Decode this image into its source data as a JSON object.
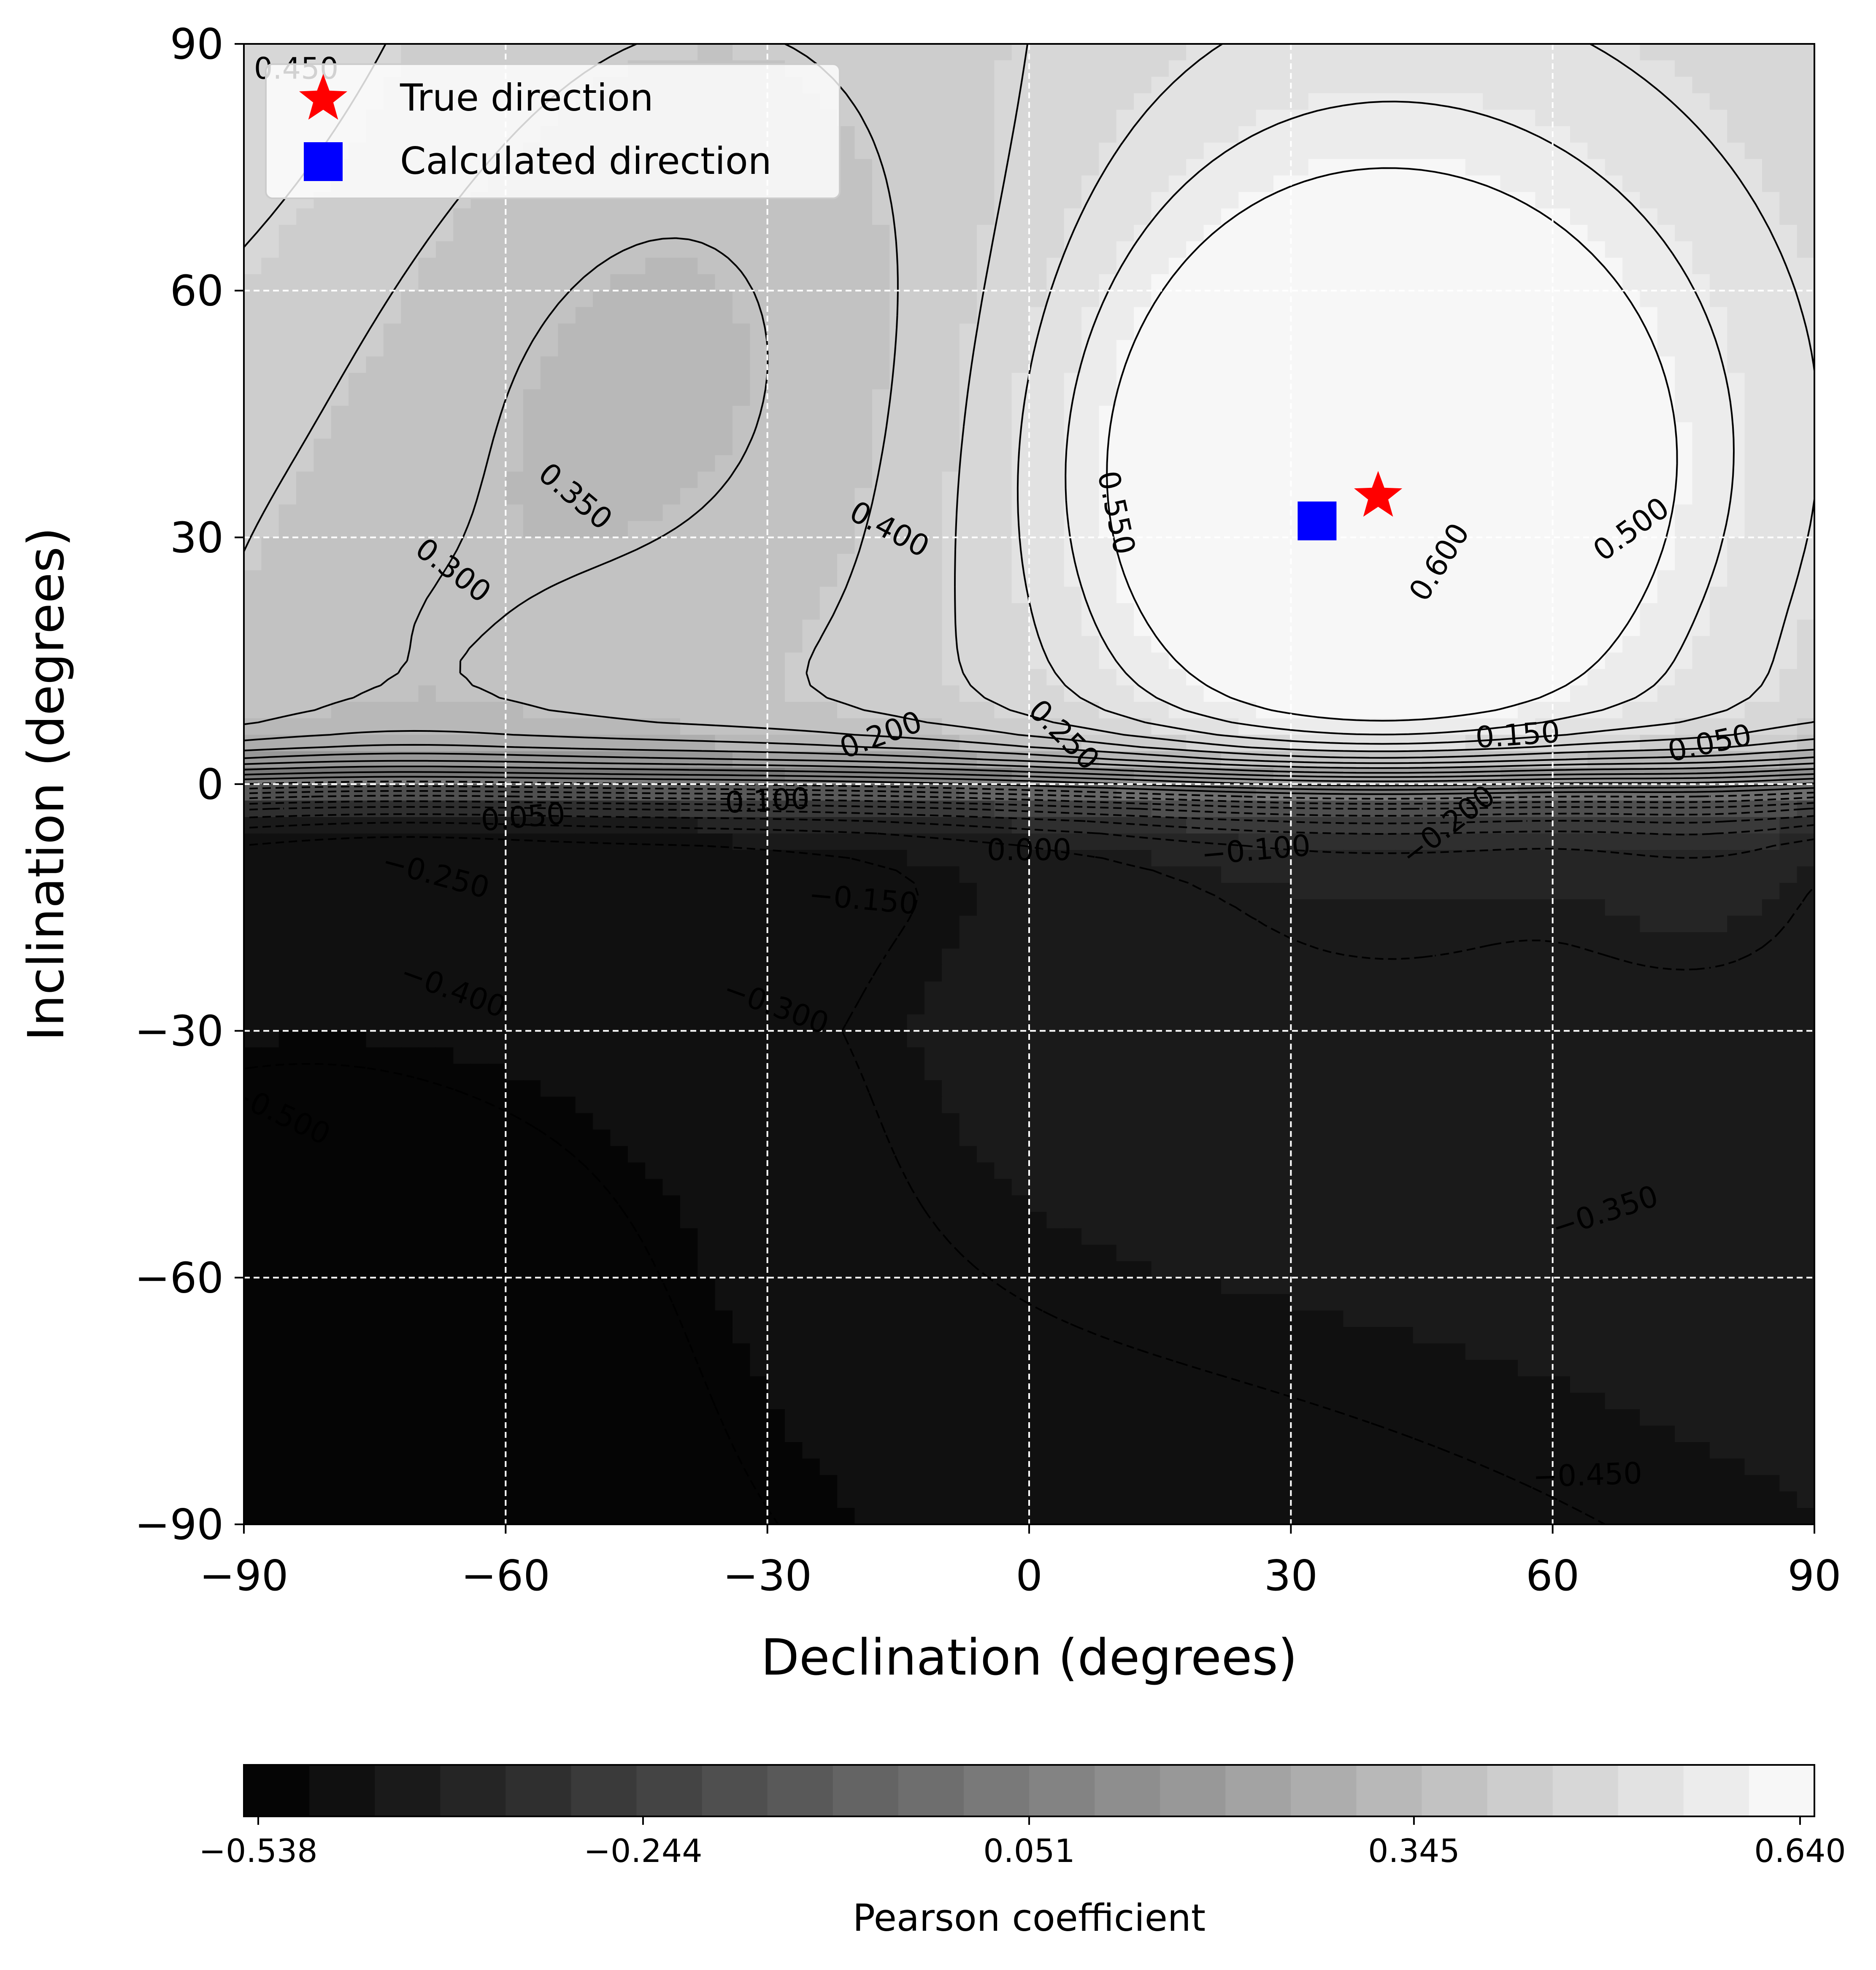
{
  "chart_data": {
    "type": "heatmap",
    "subtype": "filled-contour",
    "xlabel": "Declination (degrees)",
    "ylabel": "Inclination (degrees)",
    "xlim": [
      -90,
      90
    ],
    "ylim": [
      -90,
      90
    ],
    "xticks": [
      -90,
      -60,
      -30,
      0,
      30,
      60,
      90
    ],
    "yticks": [
      -90,
      -60,
      -30,
      0,
      30,
      60,
      90
    ],
    "xtick_labels": [
      "−90",
      "−60",
      "−30",
      "0",
      "30",
      "60",
      "90"
    ],
    "ytick_labels": [
      "−90",
      "−60",
      "−30",
      "0",
      "30",
      "60",
      "90"
    ],
    "grid": true,
    "grid_style": "white dashed",
    "colormap": "gray",
    "colorbar": {
      "label": "Pearson coefficient",
      "orientation": "horizontal",
      "range": [
        -0.538,
        0.64
      ],
      "levels": 24,
      "ticks": [
        -0.538,
        -0.244,
        0.051,
        0.345,
        0.64
      ],
      "tick_labels": [
        "−0.538",
        "−0.244",
        "0.051",
        "0.345",
        "0.640"
      ]
    },
    "contour_labels": [
      {
        "text": "0.450",
        "x": -84,
        "y": 87,
        "rot": 0
      },
      {
        "text": "0.350",
        "x": -52,
        "y": 35,
        "rot": 40
      },
      {
        "text": "0.300",
        "x": -66,
        "y": 26,
        "rot": 37
      },
      {
        "text": "0.400",
        "x": -16,
        "y": 31,
        "rot": 28
      },
      {
        "text": "0.550",
        "x": 10,
        "y": 33,
        "rot": 78
      },
      {
        "text": "0.600",
        "x": 47,
        "y": 27,
        "rot": -58
      },
      {
        "text": "0.500",
        "x": 69,
        "y": 31,
        "rot": -36
      },
      {
        "text": "0.250",
        "x": 4,
        "y": 6,
        "rot": 45
      },
      {
        "text": "0.200",
        "x": -17,
        "y": 6,
        "rot": -20
      },
      {
        "text": "0.150",
        "x": 56,
        "y": 6,
        "rot": -4
      },
      {
        "text": "0.050",
        "x": 78,
        "y": 5,
        "rot": -12
      },
      {
        "text": "0.050",
        "x": -58,
        "y": -4,
        "rot": -5
      },
      {
        "text": "0.100",
        "x": -30,
        "y": -2,
        "rot": -3
      },
      {
        "text": "0.000",
        "x": 0,
        "y": -8,
        "rot": 0
      },
      {
        "text": "−0.100",
        "x": 26,
        "y": -8,
        "rot": -5
      },
      {
        "text": "−0.200",
        "x": 48,
        "y": -5,
        "rot": -38
      },
      {
        "text": "−0.150",
        "x": -19,
        "y": -14,
        "rot": 5
      },
      {
        "text": "−0.250",
        "x": -68,
        "y": -11,
        "rot": 15
      },
      {
        "text": "−0.300",
        "x": -29,
        "y": -27,
        "rot": 20
      },
      {
        "text": "−0.400",
        "x": -66,
        "y": -25,
        "rot": 20
      },
      {
        "text": "−0.500",
        "x": -86,
        "y": -40,
        "rot": 25
      },
      {
        "text": "−0.350",
        "x": 66,
        "y": -52,
        "rot": -18
      },
      {
        "text": "−0.450",
        "x": 64,
        "y": -84,
        "rot": -2
      }
    ],
    "markers": [
      {
        "name": "True direction",
        "symbol": "star",
        "color": "#ff0000",
        "declination": 40,
        "inclination": 35
      },
      {
        "name": "Calculated direction",
        "symbol": "square",
        "color": "#0000ff",
        "declination": 33,
        "inclination": 32
      }
    ],
    "legend": {
      "placement": "top-left",
      "entries": [
        "True direction",
        "Calculated direction"
      ]
    },
    "field_model": "smooth Pearson correlation field: peak ~0.64 near (40, 35), minimum ~-0.54 near (-90, -62)"
  }
}
